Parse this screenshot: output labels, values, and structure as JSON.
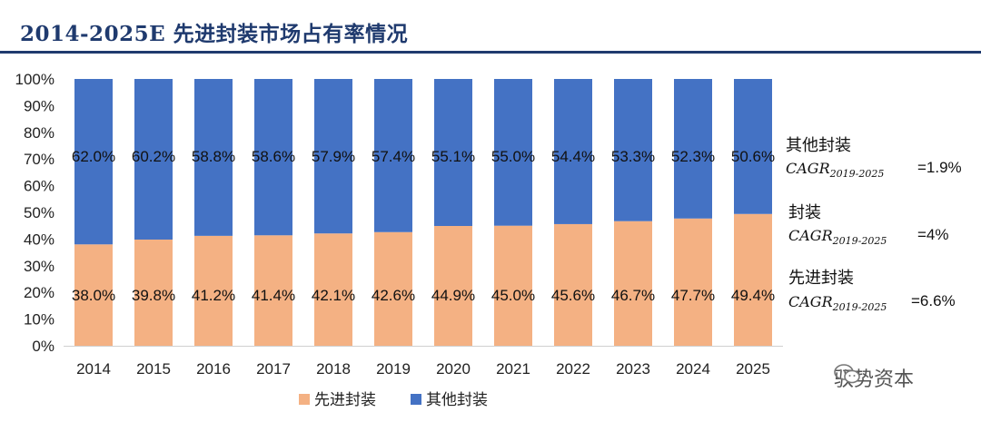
{
  "header": {
    "title": "2014-2025E 先进封装市场占有率情况"
  },
  "chart_data": {
    "type": "bar",
    "stacked": true,
    "categories": [
      "2014",
      "2015",
      "2016",
      "2017",
      "2018",
      "2019",
      "2020",
      "2021",
      "2022",
      "2023",
      "2024",
      "2025"
    ],
    "series": [
      {
        "name": "先进封装",
        "color": "#f4b183",
        "values": [
          38.0,
          39.8,
          41.2,
          41.4,
          42.1,
          42.6,
          44.9,
          45.0,
          45.6,
          46.7,
          47.7,
          49.4
        ],
        "labels": [
          "38.0%",
          "39.8%",
          "41.2%",
          "41.4%",
          "42.1%",
          "42.6%",
          "44.9%",
          "45.0%",
          "45.6%",
          "46.7%",
          "47.7%",
          "49.4%"
        ]
      },
      {
        "name": "其他封装",
        "color": "#4472c4",
        "values": [
          62.0,
          60.2,
          58.8,
          58.6,
          57.9,
          57.4,
          55.1,
          55.0,
          54.4,
          53.3,
          52.3,
          50.6
        ],
        "labels": [
          "62.0%",
          "60.2%",
          "58.8%",
          "58.6%",
          "57.9%",
          "57.4%",
          "55.1%",
          "55.0%",
          "54.4%",
          "53.3%",
          "52.3%",
          "50.6%"
        ]
      }
    ],
    "ylim": [
      0,
      100
    ],
    "yticks": [
      "0%",
      "10%",
      "20%",
      "30%",
      "40%",
      "50%",
      "60%",
      "70%",
      "80%",
      "90%",
      "100%"
    ],
    "legend_position": "bottom",
    "annotations": [
      {
        "label": "其他封装",
        "cagr": "CAGR",
        "sub": "2019-2025",
        "value": "=1.9%"
      },
      {
        "label": "封装",
        "cagr": "CAGR",
        "sub": "2019-2025",
        "value": "=4%"
      },
      {
        "label": "先进封装",
        "cagr": "CAGR",
        "sub": "2019-2025",
        "value": "=6.6%"
      }
    ]
  },
  "watermark": {
    "text": "驭势资本",
    "icon": "wechat-icon"
  }
}
